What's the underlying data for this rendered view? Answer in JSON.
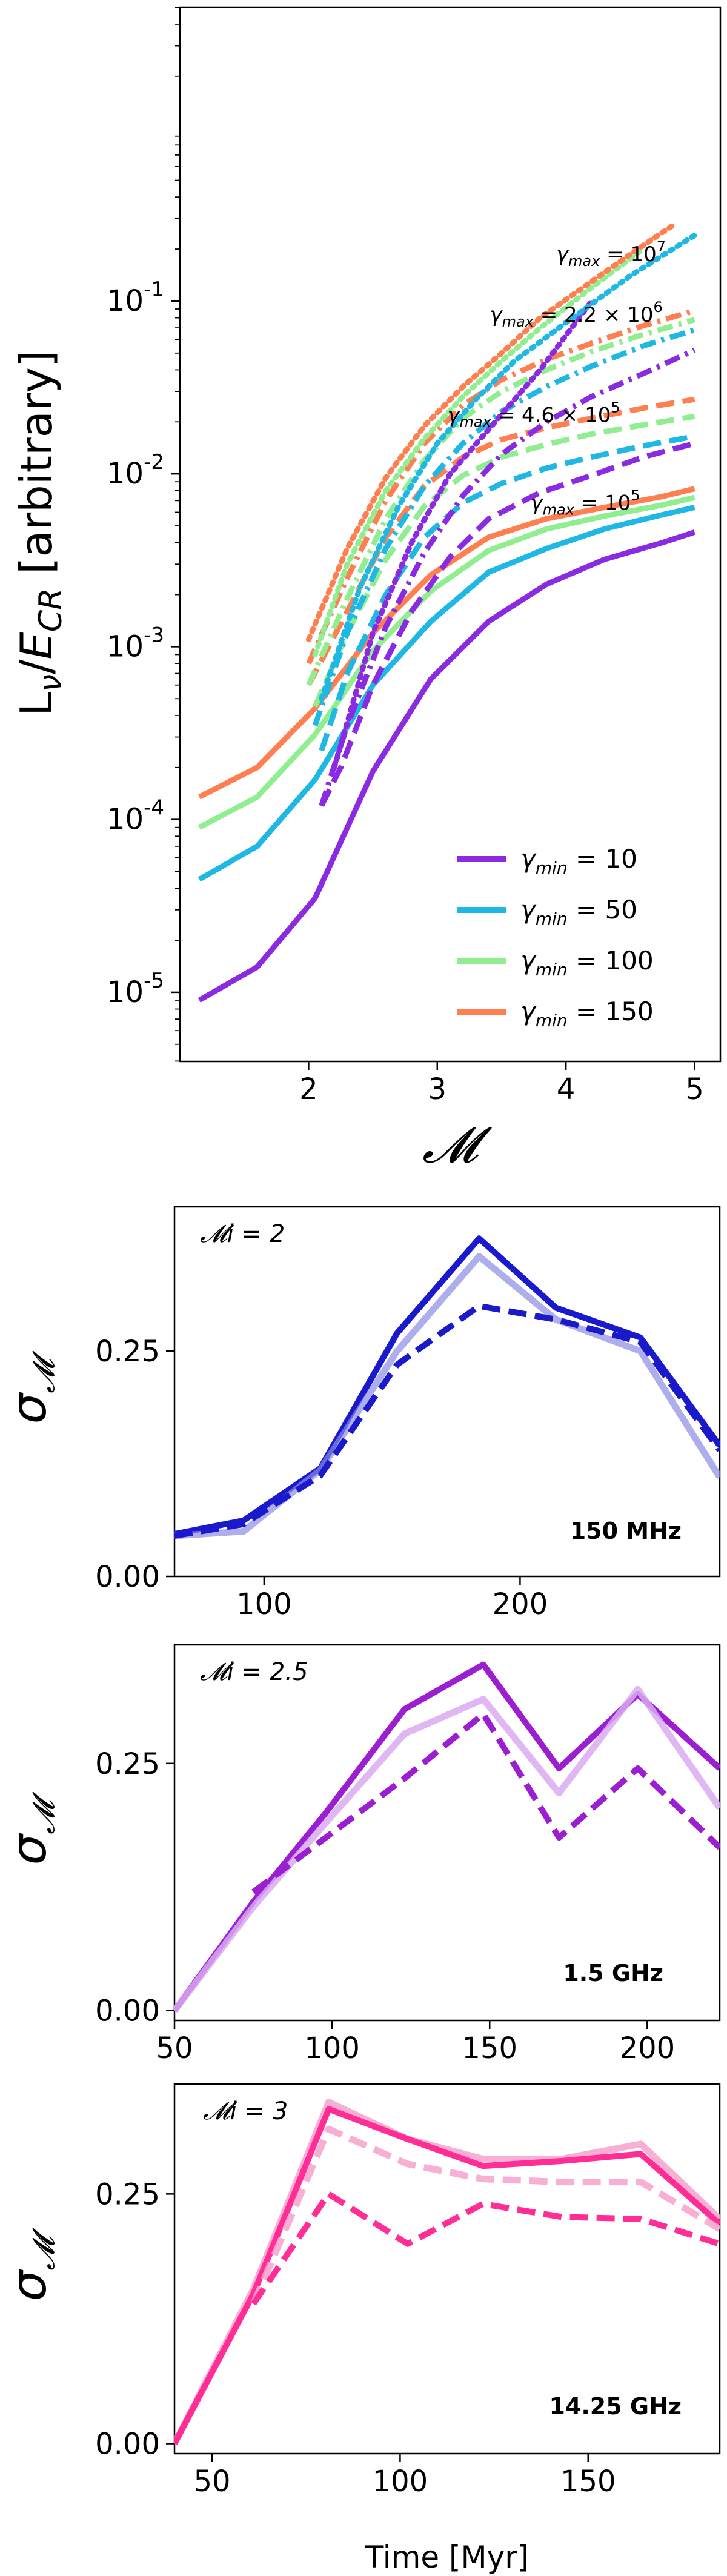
{
  "chart_data": [
    {
      "type": "line",
      "title": "",
      "xlabel": "𝓜",
      "ylabel": "Lν/E_CR [arbitrary]",
      "xlim": [
        1.0,
        5.2
      ],
      "ylim_log10": [
        -5.4,
        0.7
      ],
      "yscale": "log",
      "xticks": [
        2,
        3,
        4,
        5
      ],
      "xtick_labels": [
        "2",
        "3",
        "4",
        "5"
      ],
      "ytick_exponents": [
        -5,
        -4,
        -3,
        -2,
        -1
      ],
      "ytick_labels": [
        "10^-5",
        "10^-4",
        "10^-3",
        "10^-2",
        "10^-1"
      ],
      "legend": {
        "placement": "lower-right",
        "entries": [
          {
            "label": "γmin = 10",
            "color": "#8a2be2"
          },
          {
            "label": "γmin = 50",
            "color": "#1fb8e5"
          },
          {
            "label": "γmin = 100",
            "color": "#90ee90"
          },
          {
            "label": "γmin = 150",
            "color": "#ff7f50"
          }
        ]
      },
      "annotations": [
        {
          "text": "γmax = 10^7",
          "x": 4.35,
          "y": 0.17
        },
        {
          "text": "γmax = 2.2 × 10^6",
          "x": 4.08,
          "y": 0.076
        },
        {
          "text": "γmax = 4.6 × 10^5",
          "x": 3.75,
          "y": 0.02
        },
        {
          "text": "γmax = 10^5",
          "x": 4.15,
          "y": 0.0062
        }
      ],
      "series": [
        {
          "gamma_min": 10,
          "gamma_max": "10^5",
          "style": "solid",
          "color": "#8a2be2",
          "x": [
            1.15,
            1.6,
            2.05,
            2.5,
            2.95,
            3.4,
            3.85,
            4.3,
            4.75,
            5.0
          ],
          "y": [
            9e-06,
            1.4e-05,
            3.5e-05,
            0.00019,
            0.00065,
            0.0014,
            0.0023,
            0.0032,
            0.004,
            0.0046
          ]
        },
        {
          "gamma_min": 50,
          "gamma_max": "10^5",
          "style": "solid",
          "color": "#1fb8e5",
          "x": [
            1.15,
            1.6,
            2.05,
            2.5,
            2.95,
            3.4,
            3.85,
            4.3,
            4.75,
            5.0
          ],
          "y": [
            4.5e-05,
            7e-05,
            0.00017,
            0.0006,
            0.0014,
            0.0027,
            0.0037,
            0.0048,
            0.0058,
            0.0064
          ]
        },
        {
          "gamma_min": 100,
          "gamma_max": "10^5",
          "style": "solid",
          "color": "#90ee90",
          "x": [
            1.15,
            1.6,
            2.05,
            2.5,
            2.95,
            3.4,
            3.85,
            4.3,
            4.75,
            5.0
          ],
          "y": [
            9e-05,
            0.000135,
            0.00031,
            0.00095,
            0.0021,
            0.0036,
            0.0048,
            0.0057,
            0.0066,
            0.0073
          ]
        },
        {
          "gamma_min": 150,
          "gamma_max": "10^5",
          "style": "solid",
          "color": "#ff7f50",
          "x": [
            1.15,
            1.6,
            2.05,
            2.5,
            2.95,
            3.4,
            3.85,
            4.3,
            4.75,
            5.0
          ],
          "y": [
            0.000135,
            0.0002,
            0.00044,
            0.0012,
            0.0026,
            0.0043,
            0.0055,
            0.0064,
            0.0074,
            0.0082
          ]
        },
        {
          "gamma_min": 10,
          "gamma_max": "4.6x10^5",
          "style": "dashed",
          "color": "#8a2be2",
          "x": [
            2.1,
            2.25,
            2.5,
            2.8,
            3.1,
            3.4,
            3.8,
            4.2,
            4.6,
            5.0
          ],
          "y": [
            0.00012,
            0.0002,
            0.0006,
            0.0016,
            0.0033,
            0.0055,
            0.0078,
            0.0098,
            0.0125,
            0.015
          ]
        },
        {
          "gamma_min": 50,
          "gamma_max": "4.6x10^5",
          "style": "dashed",
          "color": "#1fb8e5",
          "x": [
            2.1,
            2.3,
            2.6,
            2.9,
            3.2,
            3.5,
            3.85,
            4.2,
            4.6,
            5.0
          ],
          "y": [
            0.00025,
            0.0007,
            0.002,
            0.0043,
            0.0068,
            0.0088,
            0.0108,
            0.0125,
            0.0145,
            0.0165
          ]
        },
        {
          "gamma_min": 100,
          "gamma_max": "4.6x10^5",
          "style": "dashed",
          "color": "#90ee90",
          "x": [
            2.05,
            2.3,
            2.6,
            2.9,
            3.2,
            3.5,
            3.85,
            4.2,
            4.6,
            5.0
          ],
          "y": [
            0.00045,
            0.0012,
            0.0032,
            0.0065,
            0.0098,
            0.0125,
            0.0148,
            0.017,
            0.0192,
            0.0215
          ]
        },
        {
          "gamma_min": 150,
          "gamma_max": "4.6x10^5",
          "style": "dashed",
          "color": "#ff7f50",
          "x": [
            2.0,
            2.3,
            2.6,
            2.9,
            3.2,
            3.5,
            3.85,
            4.2,
            4.6,
            5.0
          ],
          "y": [
            0.0006,
            0.0016,
            0.0043,
            0.0085,
            0.0125,
            0.0158,
            0.0185,
            0.021,
            0.024,
            0.027
          ]
        },
        {
          "gamma_min": 10,
          "gamma_max": "2.2x10^6",
          "style": "dashdot",
          "color": "#8a2be2",
          "x": [
            2.1,
            2.3,
            2.6,
            2.9,
            3.2,
            3.5,
            3.85,
            4.2,
            4.6,
            5.0
          ],
          "y": [
            0.00012,
            0.00035,
            0.0013,
            0.0035,
            0.0075,
            0.013,
            0.02,
            0.028,
            0.038,
            0.052
          ]
        },
        {
          "gamma_min": 50,
          "gamma_max": "2.2x10^6",
          "style": "dashdot",
          "color": "#1fb8e5",
          "x": [
            2.05,
            2.3,
            2.6,
            2.9,
            3.2,
            3.5,
            3.85,
            4.2,
            4.6,
            5.0
          ],
          "y": [
            0.00035,
            0.0012,
            0.0037,
            0.0085,
            0.015,
            0.023,
            0.032,
            0.042,
            0.055,
            0.068
          ]
        },
        {
          "gamma_min": 100,
          "gamma_max": "2.2x10^6",
          "style": "dashdot",
          "color": "#90ee90",
          "x": [
            2.0,
            2.3,
            2.6,
            2.9,
            3.2,
            3.5,
            3.85,
            4.2,
            4.6,
            5.0
          ],
          "y": [
            0.0006,
            0.0019,
            0.0055,
            0.012,
            0.021,
            0.03,
            0.04,
            0.051,
            0.064,
            0.078
          ]
        },
        {
          "gamma_min": 150,
          "gamma_max": "2.2x10^6",
          "style": "dashdot",
          "color": "#ff7f50",
          "x": [
            2.0,
            2.3,
            2.6,
            2.9,
            3.2,
            3.5,
            3.85,
            4.2,
            4.6,
            5.0
          ],
          "y": [
            0.0008,
            0.0025,
            0.007,
            0.015,
            0.025,
            0.035,
            0.046,
            0.057,
            0.072,
            0.088
          ]
        },
        {
          "gamma_min": 10,
          "gamma_max": "10^7",
          "style": "dotted",
          "color": "#8a2be2",
          "x": [
            2.2,
            2.5,
            2.8,
            3.1,
            3.45,
            3.8,
            4.2
          ],
          "y": [
            0.0002,
            0.0012,
            0.004,
            0.01,
            0.02,
            0.04,
            0.1
          ]
        },
        {
          "gamma_min": 50,
          "gamma_max": "10^7",
          "style": "dotted",
          "color": "#1fb8e5",
          "x": [
            2.1,
            2.4,
            2.7,
            3.0,
            3.3,
            3.6,
            4.0,
            4.5,
            5.0
          ],
          "y": [
            0.0005,
            0.0022,
            0.0065,
            0.015,
            0.027,
            0.045,
            0.075,
            0.14,
            0.24
          ]
        },
        {
          "gamma_min": 100,
          "gamma_max": "10^7",
          "style": "dotted",
          "color": "#90ee90",
          "x": [
            2.05,
            2.3,
            2.6,
            2.9,
            3.2,
            3.5,
            3.8,
            4.2,
            4.6
          ],
          "y": [
            0.0009,
            0.003,
            0.008,
            0.016,
            0.028,
            0.045,
            0.07,
            0.12,
            0.2
          ]
        },
        {
          "gamma_min": 150,
          "gamma_max": "10^7",
          "style": "dotted",
          "color": "#ff7f50",
          "x": [
            2.0,
            2.3,
            2.6,
            2.9,
            3.2,
            3.5,
            3.8,
            4.2,
            4.6,
            4.85
          ],
          "y": [
            0.0011,
            0.0037,
            0.0095,
            0.019,
            0.032,
            0.05,
            0.08,
            0.13,
            0.21,
            0.28
          ]
        }
      ]
    },
    {
      "type": "line",
      "ylabel": "σ𝓜",
      "xlabel": "",
      "xlim": [
        65,
        278
      ],
      "ylim": [
        0.0,
        0.41
      ],
      "xticks": [
        100,
        200
      ],
      "yticks": [
        0.0,
        0.25
      ],
      "ytick_labels": [
        "0.00",
        "0.25"
      ],
      "label_text": "𝓜i = 2",
      "label_color": "#1414cc",
      "frequency_label": "150 MHz",
      "series": [
        {
          "style": "solid",
          "color": "#1a1acc",
          "opacity": 1.0,
          "x": [
            65,
            92,
            122,
            152,
            184,
            214,
            247,
            278
          ],
          "y": [
            0.047,
            0.062,
            0.12,
            0.27,
            0.375,
            0.298,
            0.265,
            0.145
          ]
        },
        {
          "style": "solid-light",
          "color": "#8c8ce6",
          "opacity": 0.7,
          "x": [
            65,
            92,
            122,
            152,
            184,
            214,
            247,
            278
          ],
          "y": [
            0.045,
            0.05,
            0.118,
            0.25,
            0.355,
            0.285,
            0.25,
            0.11
          ]
        },
        {
          "style": "dashed",
          "color": "#1a1acc",
          "opacity": 1.0,
          "x": [
            65,
            92,
            122,
            152,
            184,
            214,
            247,
            278
          ],
          "y": [
            0.045,
            0.058,
            0.112,
            0.235,
            0.3,
            0.285,
            0.26,
            0.14
          ]
        }
      ]
    },
    {
      "type": "line",
      "ylabel": "σ𝓜",
      "xlabel": "",
      "xlim": [
        50,
        223
      ],
      "ylim": [
        -0.01,
        0.37
      ],
      "xticks": [
        50,
        100,
        150,
        200
      ],
      "yticks": [
        0.0,
        0.25
      ],
      "ytick_labels": [
        "0.00",
        "0.25"
      ],
      "label_text": "𝓜i = 2.5",
      "label_color": "#9b1fd1",
      "frequency_label": "1.5 GHz",
      "series": [
        {
          "style": "solid",
          "color": "#9b1fd1",
          "opacity": 1.0,
          "x": [
            50,
            75,
            98,
            123,
            148,
            172,
            197,
            223
          ],
          "y": [
            0.0,
            0.11,
            0.2,
            0.305,
            0.35,
            0.245,
            0.32,
            0.245
          ]
        },
        {
          "style": "solid-light",
          "color": "#d9aaf0",
          "opacity": 0.85,
          "x": [
            50,
            75,
            98,
            123,
            148,
            172,
            197,
            223
          ],
          "y": [
            0.0,
            0.105,
            0.19,
            0.28,
            0.315,
            0.22,
            0.325,
            0.205
          ]
        },
        {
          "style": "dashed",
          "color": "#9b1fd1",
          "opacity": 1.0,
          "x": [
            75,
            98,
            123,
            148,
            172,
            197,
            223
          ],
          "y": [
            0.12,
            0.175,
            0.235,
            0.3,
            0.175,
            0.245,
            0.165
          ]
        }
      ]
    },
    {
      "type": "line",
      "ylabel": "σ𝓜",
      "xlabel": "Time [Myr]",
      "xlim": [
        40,
        185
      ],
      "ylim": [
        -0.01,
        0.36
      ],
      "xticks": [
        50,
        100,
        150
      ],
      "yticks": [
        0.0,
        0.25
      ],
      "ytick_labels": [
        "0.00",
        "0.25"
      ],
      "label_text": "𝓜i = 3",
      "label_color": "#ff2d95",
      "frequency_label": "14.25 GHz",
      "series": [
        {
          "style": "solid-light",
          "color": "#f7a6cf",
          "opacity": 0.9,
          "x": [
            40,
            61,
            81,
            102,
            122,
            143,
            164,
            185
          ],
          "y": [
            0.0,
            0.155,
            0.342,
            0.305,
            0.285,
            0.285,
            0.3,
            0.225
          ]
        },
        {
          "style": "solid",
          "color": "#ff2d95",
          "opacity": 1.0,
          "x": [
            40,
            61,
            81,
            102,
            122,
            143,
            164,
            185
          ],
          "y": [
            0.0,
            0.15,
            0.335,
            0.305,
            0.278,
            0.283,
            0.29,
            0.22
          ]
        },
        {
          "style": "dashed-light",
          "color": "#f7a6cf",
          "opacity": 0.9,
          "x": [
            61,
            81,
            102,
            122,
            143,
            164,
            185
          ],
          "y": [
            0.14,
            0.315,
            0.28,
            0.265,
            0.262,
            0.262,
            0.215
          ]
        },
        {
          "style": "dashed",
          "color": "#ff2d95",
          "opacity": 1.0,
          "x": [
            61,
            81,
            102,
            122,
            143,
            164,
            185
          ],
          "y": [
            0.14,
            0.25,
            0.2,
            0.24,
            0.227,
            0.225,
            0.2
          ]
        }
      ]
    }
  ]
}
